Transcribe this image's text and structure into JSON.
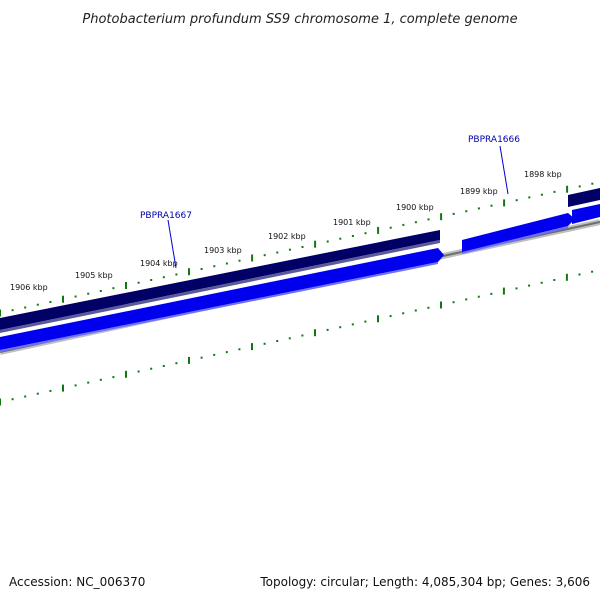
{
  "title": "Photobacterium profundum SS9 chromosome 1, complete genome",
  "ticks": [
    {
      "label": "1906 kbp"
    },
    {
      "label": "1905 kbp"
    },
    {
      "label": "1904 kbp"
    },
    {
      "label": "1903 kbp"
    },
    {
      "label": "1902 kbp"
    },
    {
      "label": "1901 kbp"
    },
    {
      "label": "1900 kbp"
    },
    {
      "label": "1899 kbp"
    },
    {
      "label": "1898 kbp"
    }
  ],
  "genes": [
    {
      "label": "PBPRA1667"
    },
    {
      "label": "PBPRA1666"
    }
  ],
  "footer": {
    "accession": "Accession: NC_006370",
    "summary": "Topology: circular; Length: 4,085,304 bp; Genes: 3,606"
  },
  "colors": {
    "forward_track": "#000066",
    "reverse_track": "#0000ee",
    "backbone": "#888888",
    "ticks": "#117711",
    "gene_label": "#0000aa"
  }
}
